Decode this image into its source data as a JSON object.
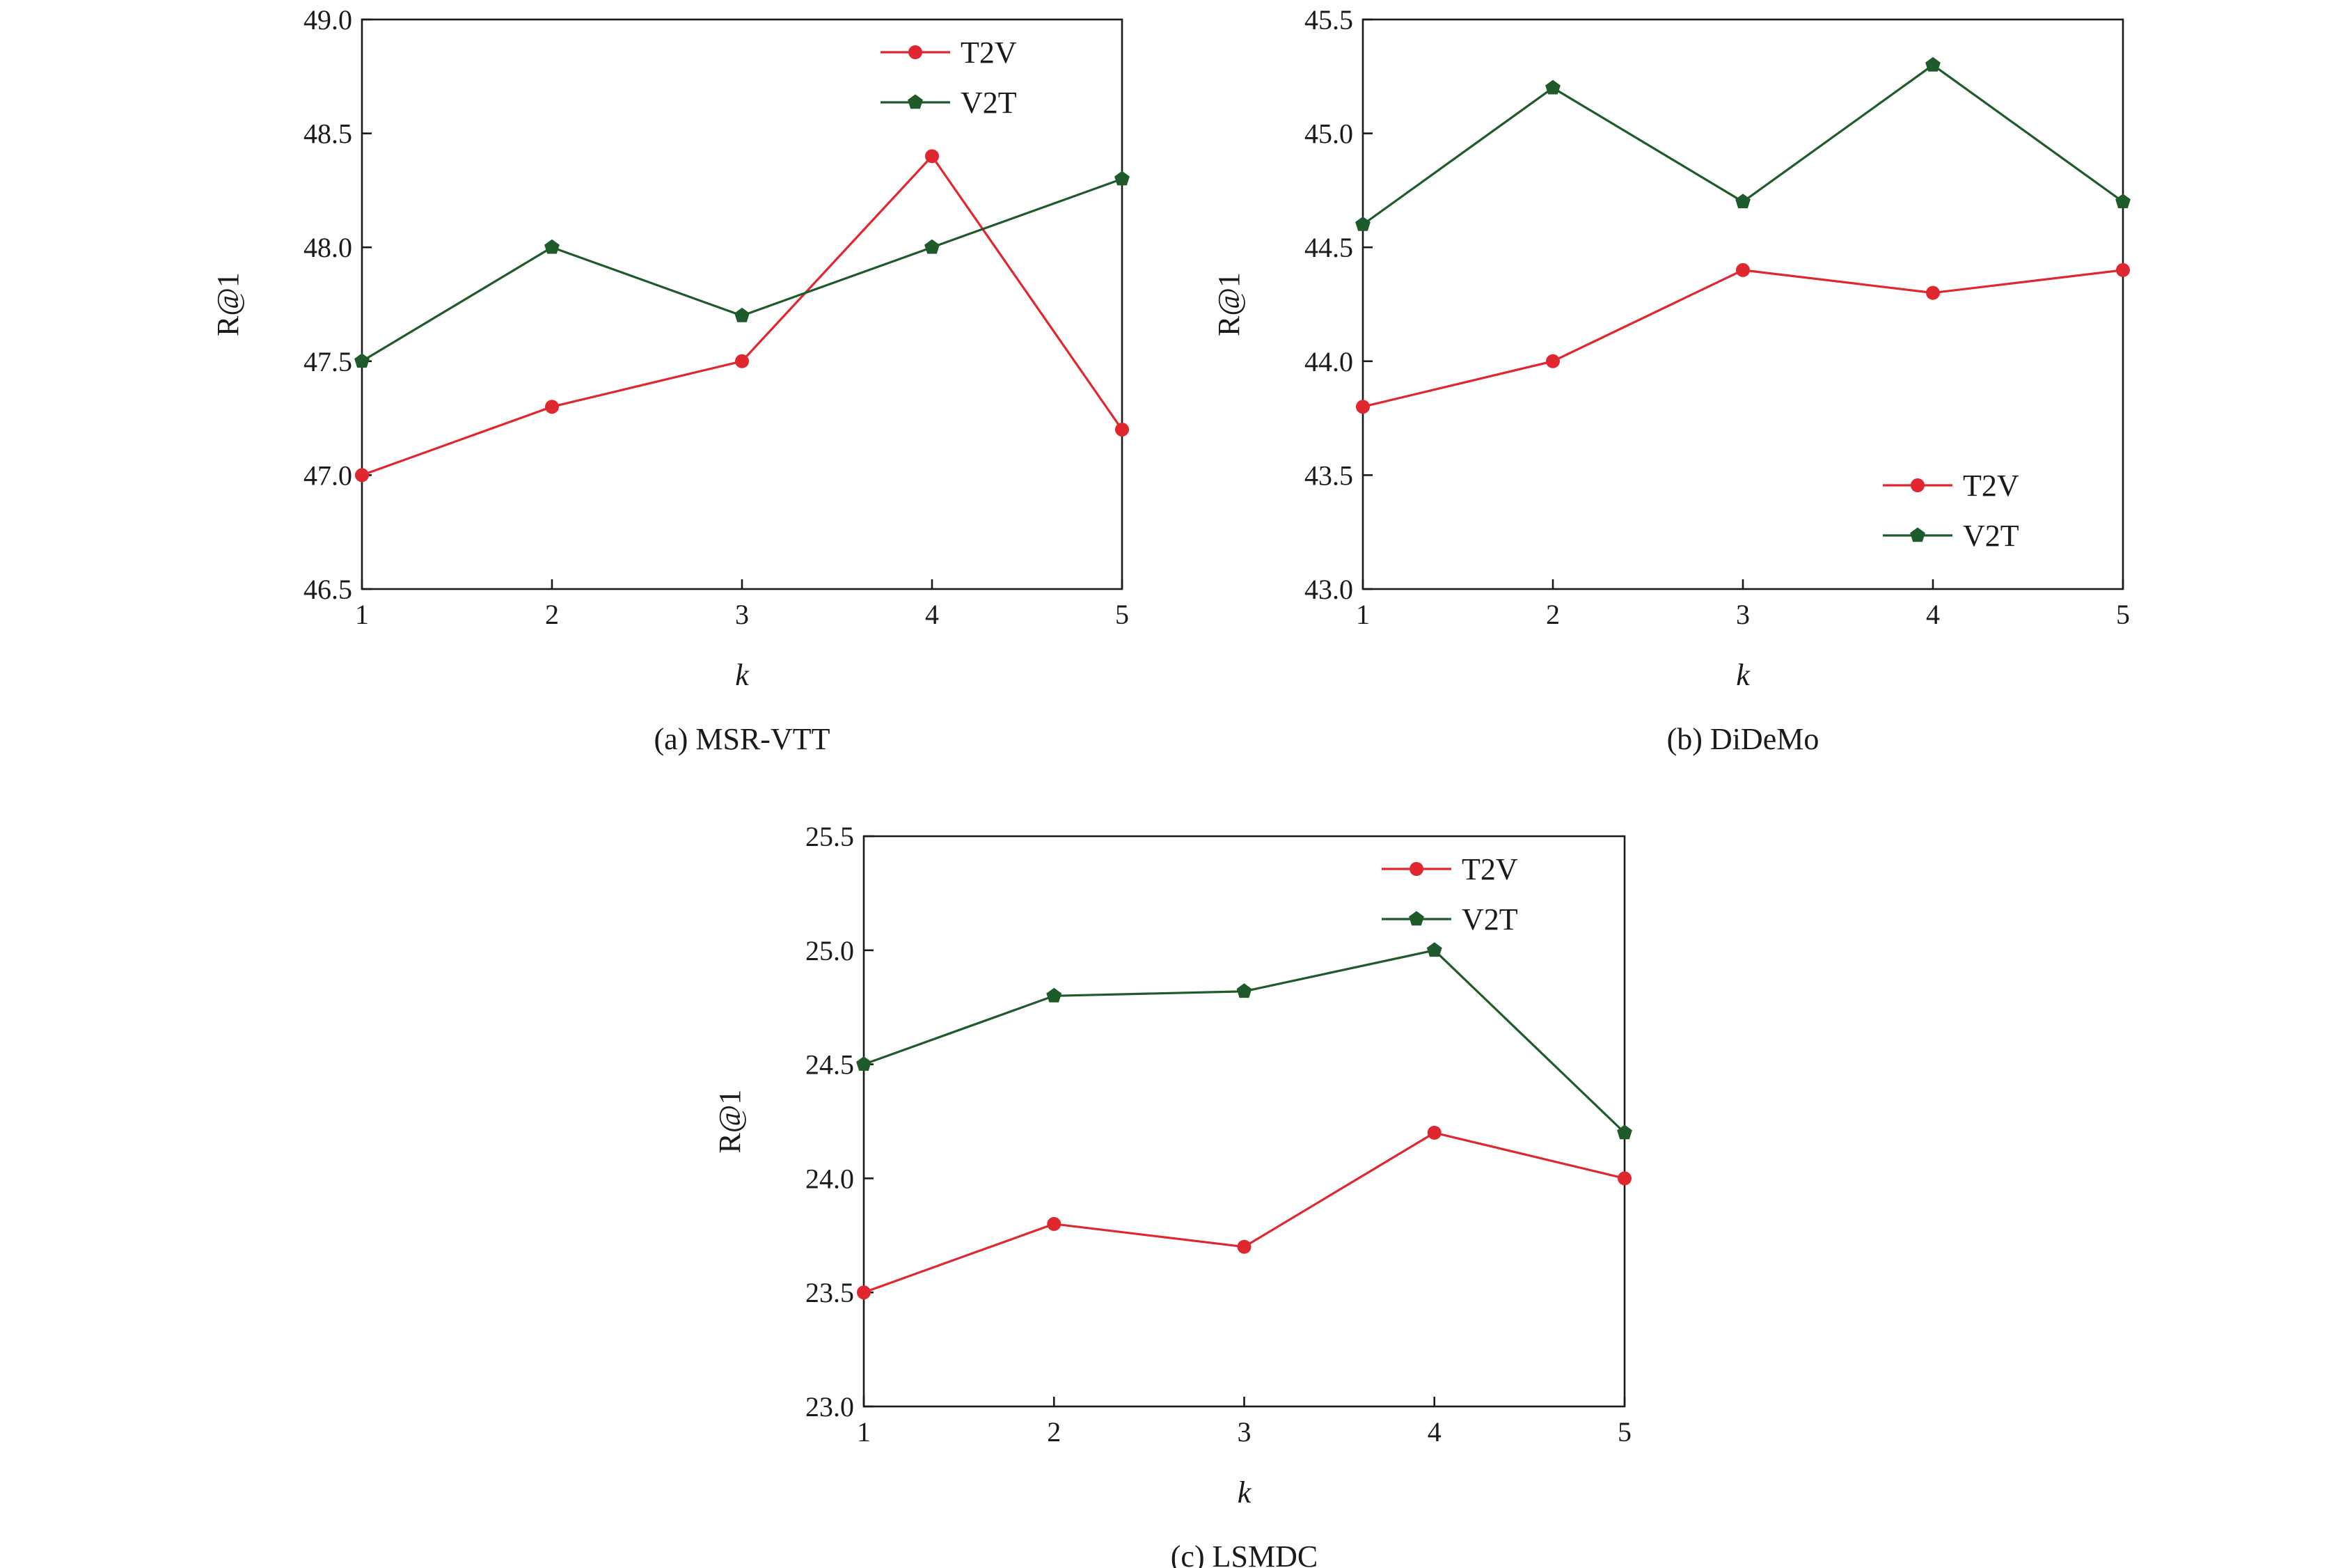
{
  "chart_data": [
    {
      "type": "line",
      "caption": "(a) MSR-VTT",
      "xlabel": "k",
      "ylabel": "R@1",
      "x": [
        1,
        2,
        3,
        4,
        5
      ],
      "xticks": [
        "1",
        "2",
        "3",
        "4",
        "5"
      ],
      "ylim": [
        46.5,
        49.0
      ],
      "yticks": [
        "46.5",
        "47.0",
        "47.5",
        "48.0",
        "48.5",
        "49.0"
      ],
      "legend_position": "top-right",
      "series": [
        {
          "name": "T2V",
          "values": [
            47.0,
            47.3,
            47.5,
            48.4,
            47.2
          ],
          "color": "#e0262e",
          "marker": "circle"
        },
        {
          "name": "V2T",
          "values": [
            47.5,
            48.0,
            47.7,
            48.0,
            48.3
          ],
          "color": "#1f5a2a",
          "marker": "pentagon"
        }
      ]
    },
    {
      "type": "line",
      "caption": "(b) DiDeMo",
      "xlabel": "k",
      "ylabel": "R@1",
      "x": [
        1,
        2,
        3,
        4,
        5
      ],
      "xticks": [
        "1",
        "2",
        "3",
        "4",
        "5"
      ],
      "ylim": [
        43.0,
        45.5
      ],
      "yticks": [
        "43.0",
        "43.5",
        "44.0",
        "44.5",
        "45.0",
        "45.5"
      ],
      "legend_position": "bottom-right",
      "series": [
        {
          "name": "T2V",
          "values": [
            43.8,
            44.0,
            44.4,
            44.3,
            44.4
          ],
          "color": "#e0262e",
          "marker": "circle"
        },
        {
          "name": "V2T",
          "values": [
            44.6,
            45.2,
            44.7,
            45.3,
            44.7
          ],
          "color": "#1f5a2a",
          "marker": "pentagon"
        }
      ]
    },
    {
      "type": "line",
      "caption": "(c) LSMDC",
      "xlabel": "k",
      "ylabel": "R@1",
      "x": [
        1,
        2,
        3,
        4,
        5
      ],
      "xticks": [
        "1",
        "2",
        "3",
        "4",
        "5"
      ],
      "ylim": [
        23.0,
        25.5
      ],
      "yticks": [
        "23.0",
        "23.5",
        "24.0",
        "24.5",
        "25.0",
        "25.5"
      ],
      "legend_position": "top-right",
      "series": [
        {
          "name": "T2V",
          "values": [
            23.5,
            23.8,
            23.7,
            24.2,
            24.0
          ],
          "color": "#e0262e",
          "marker": "circle"
        },
        {
          "name": "V2T",
          "values": [
            24.5,
            24.8,
            24.82,
            25.0,
            24.2
          ],
          "color": "#1f5a2a",
          "marker": "pentagon"
        }
      ]
    }
  ]
}
